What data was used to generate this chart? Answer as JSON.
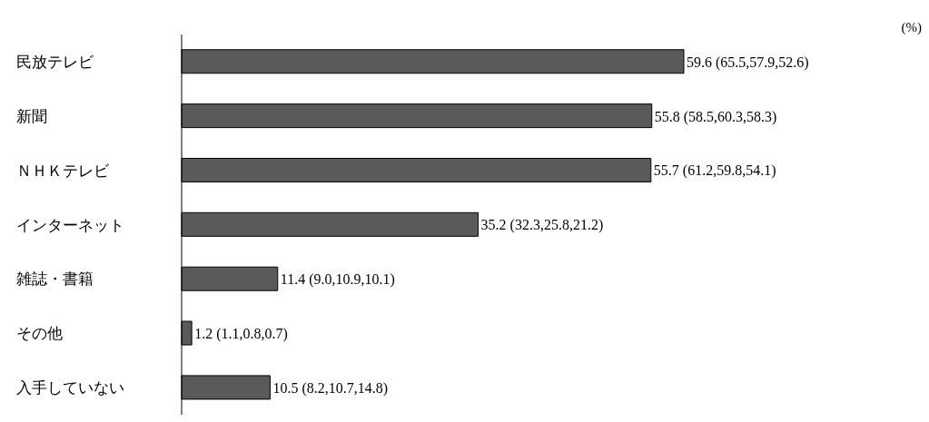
{
  "chart_data": {
    "type": "bar",
    "orientation": "horizontal",
    "categories": [
      "民放テレビ",
      "新聞",
      "ＮＨＫテレビ",
      "インターネット",
      "雑誌・書籍",
      "その他",
      "入手していない"
    ],
    "values": [
      59.6,
      55.8,
      55.7,
      35.2,
      11.4,
      1.2,
      10.5
    ],
    "value_labels": [
      "59.6 (65.5,57.9,52.6)",
      "55.8 (58.5,60.3,58.3)",
      "55.7 (61.2,59.8,54.1)",
      "35.2 (32.3,25.8,21.2)",
      "11.4 (9.0,10.9,10.1)",
      "1.2 (1.1,0.8,0.7)",
      "10.5 (8.2,10.7,14.8)"
    ],
    "color": "#5a5a5a",
    "annotations": [
      "(%)"
    ]
  }
}
